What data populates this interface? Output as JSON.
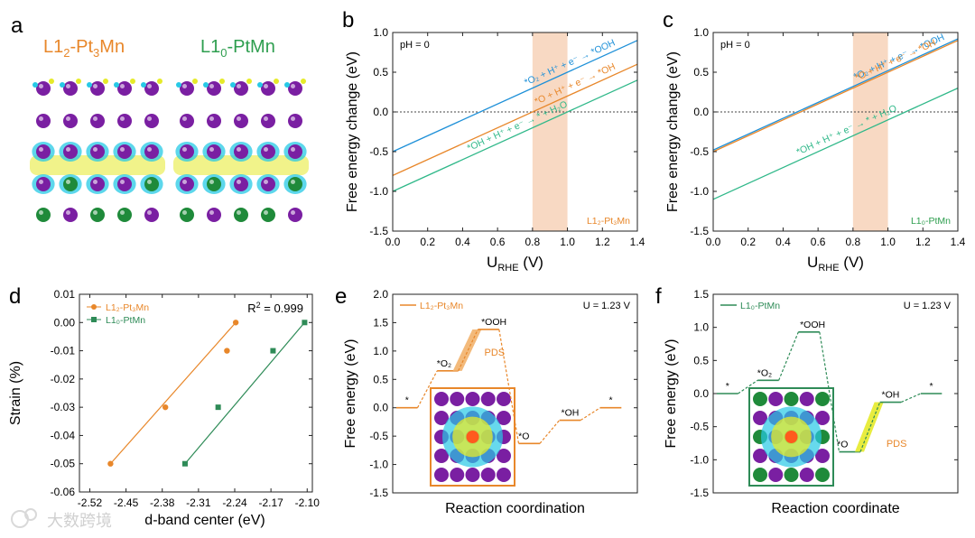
{
  "figure": {
    "watermark": "大数跨境",
    "colors": {
      "blue": "#1e90d8",
      "orange": "#e8872a",
      "green": "#2fb889",
      "dark_green": "#2e8b57",
      "band": "#f7d2b8",
      "purple": "#7a1fa2",
      "cyan": "#27c9e6",
      "yellow": "#e6ea2a"
    }
  },
  "panel_a": {
    "letter": "a",
    "title_left_base": "L1",
    "title_left_sub": "2",
    "title_left_rest": "-Pt",
    "title_left_sub2": "3",
    "title_left_end": "Mn",
    "title_right_base": "L1",
    "title_right_sub": "0",
    "title_right_rest": "-PtMn"
  },
  "chart_data": [
    {
      "id": "b",
      "type": "line",
      "letter": "b",
      "annotation": "pH = 0",
      "corner_label": "L1₂-Pt₃Mn",
      "xlabel_main": "U",
      "xlabel_sub": "RHE",
      "xlabel_rest": " (V)",
      "ylabel": "Free energy change (eV)",
      "xlim": [
        0,
        1.4
      ],
      "ylim": [
        -1.5,
        1.0
      ],
      "xticks": [
        "0.0",
        "0.2",
        "0.4",
        "0.6",
        "0.8",
        "1.0",
        "1.2",
        "1.4"
      ],
      "yticks": [
        "-1.5",
        "-1.0",
        "-0.5",
        "0.0",
        "0.5",
        "1.0"
      ],
      "shaded_band": [
        0.8,
        1.0
      ],
      "series": [
        {
          "color_key": "blue",
          "label": "*O₂ + H⁺ + e⁻ → *OOH",
          "x": [
            0,
            1.4
          ],
          "y": [
            -0.5,
            0.9
          ]
        },
        {
          "color_key": "orange",
          "label": "*O + H⁺ + e⁻ → *OH",
          "x": [
            0,
            1.4
          ],
          "y": [
            -0.8,
            0.6
          ]
        },
        {
          "color_key": "green",
          "label": "*OH + H⁺ + e⁻ → * + H₂O",
          "x": [
            0,
            1.4
          ],
          "y": [
            -1.0,
            0.4
          ]
        }
      ]
    },
    {
      "id": "c",
      "type": "line",
      "letter": "c",
      "annotation": "pH = 0",
      "corner_label": "L1₀-PtMn",
      "xlabel_main": "U",
      "xlabel_sub": "RHE",
      "xlabel_rest": " (V)",
      "ylabel": "Free energy change (eV)",
      "xlim": [
        0,
        1.4
      ],
      "ylim": [
        -1.5,
        1.0
      ],
      "xticks": [
        "0.0",
        "0.2",
        "0.4",
        "0.6",
        "0.8",
        "1.0",
        "1.2",
        "1.4"
      ],
      "yticks": [
        "-1.5",
        "-1.0",
        "-0.5",
        "0.0",
        "0.5",
        "1.0"
      ],
      "shaded_band": [
        0.8,
        1.0
      ],
      "series": [
        {
          "color_key": "blue",
          "label": "*O₂ + H⁺ + e⁻ → *OOH",
          "x": [
            0,
            1.4
          ],
          "y": [
            -0.48,
            0.92
          ]
        },
        {
          "color_key": "orange",
          "label": "*O + H⁺ + e⁻ → *OH",
          "x": [
            0,
            1.4
          ],
          "y": [
            -0.5,
            0.9
          ]
        },
        {
          "color_key": "green",
          "label": "*OH + H⁺ + e⁻ → * + H₂O",
          "x": [
            0,
            1.4
          ],
          "y": [
            -1.1,
            0.3
          ]
        }
      ]
    },
    {
      "id": "d",
      "type": "scatter",
      "letter": "d",
      "annotation_main": "R",
      "annotation_sup": "2",
      "annotation_rest": " = 0.999",
      "xlabel": "d-band center (eV)",
      "ylabel": "Strain (%)",
      "xlim": [
        -2.54,
        -2.09
      ],
      "ylim": [
        -0.06,
        0.01
      ],
      "xtick_values": [
        -2.52,
        -2.45,
        -2.38,
        -2.31,
        -2.24,
        -2.17,
        -2.1
      ],
      "xticks": [
        "-2.52",
        "-2.45",
        "-2.38",
        "-2.31",
        "-2.24",
        "-2.17",
        "-2.10"
      ],
      "ytick_values": [
        -0.06,
        -0.05,
        -0.04,
        -0.03,
        -0.02,
        -0.01,
        0.0,
        0.01
      ],
      "yticks": [
        "-0.06",
        "-0.05",
        "-0.04",
        "-0.03",
        "-0.02",
        "-0.01",
        "0.00",
        "0.01"
      ],
      "series": [
        {
          "name": "L1₂-Pt₃Mn",
          "color_key": "orange",
          "marker": "circle",
          "x": [
            -2.48,
            -2.374,
            -2.255,
            -2.238
          ],
          "y": [
            -0.05,
            -0.03,
            -0.01,
            0.0
          ]
        },
        {
          "name": "L1₀-PtMn",
          "color_key": "dark_green",
          "marker": "square",
          "x": [
            -2.336,
            -2.272,
            -2.166,
            -2.105
          ],
          "y": [
            -0.05,
            -0.03,
            -0.01,
            0.0
          ]
        }
      ]
    },
    {
      "id": "e",
      "type": "line",
      "letter": "e",
      "legend": "L1₂-Pt₃Mn",
      "annotation": "U = 1.23 V",
      "pds_label": "PDS",
      "xlabel": "Reaction coordination",
      "ylabel": "Free energy (eV)",
      "ylim": [
        -1.5,
        2.0
      ],
      "yticks": [
        "-1.5",
        "-1.0",
        "-0.5",
        "0.0",
        "0.5",
        "1.0",
        "1.5",
        "2.0"
      ],
      "levels": [
        {
          "label": "*",
          "value": 0.0
        },
        {
          "label": "*O₂",
          "value": 0.65
        },
        {
          "label": "*OOH",
          "value": 1.38
        },
        {
          "label": "*O",
          "value": -0.63
        },
        {
          "label": "*OH",
          "value": -0.22
        },
        {
          "label": "*",
          "value": 0.0
        }
      ],
      "pds_step": 1
    },
    {
      "id": "f",
      "type": "line",
      "letter": "f",
      "legend": "L1₀-PtMn",
      "annotation": "U = 1.23 V",
      "pds_label": "PDS",
      "xlabel": "Reaction coordinate",
      "ylabel": "Free energy (eV)",
      "ylim": [
        -1.5,
        1.5
      ],
      "yticks": [
        "-1.5",
        "-1.0",
        "-0.5",
        "0.0",
        "0.5",
        "1.0",
        "1.5"
      ],
      "levels": [
        {
          "label": "*",
          "value": 0.0
        },
        {
          "label": "*O₂",
          "value": 0.2
        },
        {
          "label": "*OOH",
          "value": 0.93
        },
        {
          "label": "*O",
          "value": -0.88
        },
        {
          "label": "*OH",
          "value": -0.13
        },
        {
          "label": "*",
          "value": 0.0
        }
      ],
      "pds_step": 3
    }
  ]
}
